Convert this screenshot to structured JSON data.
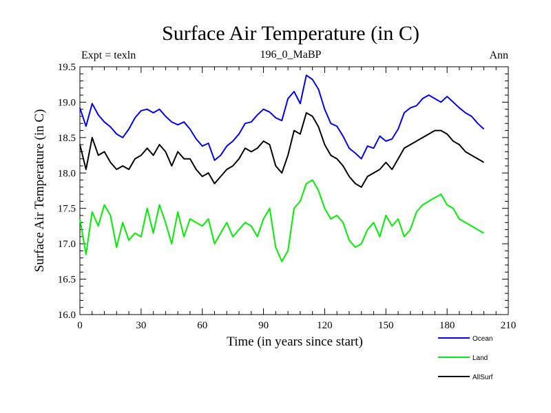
{
  "chart_data": {
    "type": "line",
    "title": "Surface Air Temperature (in C)",
    "subtitle": "196_0_MaBP",
    "header_left": "Expt = texln",
    "header_right": "Ann",
    "xlabel": "Time (in years since start)",
    "ylabel": "Surface Air Temperature (in C)",
    "xlim": [
      0,
      210
    ],
    "ylim": [
      16.0,
      19.5
    ],
    "xticks": [
      0,
      30,
      60,
      90,
      120,
      150,
      180,
      210
    ],
    "yticks": [
      16.0,
      16.5,
      17.0,
      17.5,
      18.0,
      18.5,
      19.0,
      19.5
    ],
    "ytick_labels": [
      "16.0",
      "16.5",
      "17.0",
      "17.5",
      "18.0",
      "18.5",
      "19.0",
      "19.5"
    ],
    "legend_position": "bottom-right",
    "series": [
      {
        "name": "Ocean",
        "color": "#0000ee",
        "x": [
          0,
          3,
          6,
          9,
          12,
          15,
          18,
          21,
          24,
          27,
          30,
          33,
          36,
          39,
          42,
          45,
          48,
          51,
          54,
          57,
          60,
          63,
          66,
          69,
          72,
          75,
          78,
          81,
          84,
          87,
          90,
          93,
          96,
          99,
          102,
          105,
          108,
          111,
          114,
          117,
          120,
          123,
          126,
          129,
          132,
          135,
          138,
          141,
          144,
          147,
          150,
          153,
          156,
          159,
          162,
          165,
          168,
          171,
          174,
          177,
          180,
          183,
          186,
          189,
          192,
          195,
          198
        ],
        "values": [
          18.92,
          18.66,
          18.98,
          18.82,
          18.72,
          18.65,
          18.55,
          18.5,
          18.62,
          18.78,
          18.88,
          18.9,
          18.85,
          18.9,
          18.8,
          18.72,
          18.68,
          18.72,
          18.62,
          18.48,
          18.38,
          18.42,
          18.18,
          18.25,
          18.38,
          18.45,
          18.55,
          18.7,
          18.72,
          18.82,
          18.9,
          18.86,
          18.78,
          18.74,
          19.05,
          19.15,
          18.98,
          19.38,
          19.32,
          19.18,
          18.9,
          18.7,
          18.66,
          18.52,
          18.35,
          18.28,
          18.2,
          18.38,
          18.35,
          18.52,
          18.45,
          18.48,
          18.62,
          18.85,
          18.92,
          18.95,
          19.05,
          19.1,
          19.05,
          19.0,
          19.08,
          19.0,
          18.92,
          18.85,
          18.8,
          18.7,
          18.62
        ]
      },
      {
        "name": "Land",
        "color": "#00ee00",
        "x": [
          0,
          3,
          6,
          9,
          12,
          15,
          18,
          21,
          24,
          27,
          30,
          33,
          36,
          39,
          42,
          45,
          48,
          51,
          54,
          57,
          60,
          63,
          66,
          69,
          72,
          75,
          78,
          81,
          84,
          87,
          90,
          93,
          96,
          99,
          102,
          105,
          108,
          111,
          114,
          117,
          120,
          123,
          126,
          129,
          132,
          135,
          138,
          141,
          144,
          147,
          150,
          153,
          156,
          159,
          162,
          165,
          168,
          171,
          174,
          177,
          180,
          183,
          186,
          189,
          192,
          195,
          198
        ],
        "values": [
          17.35,
          16.85,
          17.45,
          17.25,
          17.55,
          17.4,
          16.95,
          17.3,
          17.05,
          17.15,
          17.1,
          17.5,
          17.15,
          17.55,
          17.3,
          17.0,
          17.45,
          17.1,
          17.35,
          17.3,
          17.25,
          17.35,
          17.0,
          17.15,
          17.3,
          17.1,
          17.2,
          17.3,
          17.25,
          17.1,
          17.35,
          17.5,
          16.95,
          16.75,
          16.9,
          17.5,
          17.6,
          17.85,
          17.9,
          17.75,
          17.5,
          17.35,
          17.4,
          17.3,
          17.05,
          16.95,
          17.0,
          17.2,
          17.3,
          17.1,
          17.4,
          17.25,
          17.35,
          17.1,
          17.2,
          17.45,
          17.55,
          17.6,
          17.65,
          17.7,
          17.55,
          17.5,
          17.35,
          17.3,
          17.25,
          17.2,
          17.15
        ]
      },
      {
        "name": "AllSurf",
        "color": "#000000",
        "x": [
          0,
          3,
          6,
          9,
          12,
          15,
          18,
          21,
          24,
          27,
          30,
          33,
          36,
          39,
          42,
          45,
          48,
          51,
          54,
          57,
          60,
          63,
          66,
          69,
          72,
          75,
          78,
          81,
          84,
          87,
          90,
          93,
          96,
          99,
          102,
          105,
          108,
          111,
          114,
          117,
          120,
          123,
          126,
          129,
          132,
          135,
          138,
          141,
          144,
          147,
          150,
          153,
          156,
          159,
          162,
          165,
          168,
          171,
          174,
          177,
          180,
          183,
          186,
          189,
          192,
          195,
          198
        ],
        "values": [
          18.4,
          18.05,
          18.5,
          18.25,
          18.3,
          18.15,
          18.05,
          18.1,
          18.05,
          18.2,
          18.25,
          18.35,
          18.25,
          18.4,
          18.3,
          18.1,
          18.3,
          18.2,
          18.2,
          18.05,
          17.95,
          18.0,
          17.85,
          17.95,
          18.05,
          18.1,
          18.2,
          18.35,
          18.3,
          18.35,
          18.45,
          18.4,
          18.1,
          18.0,
          18.25,
          18.6,
          18.55,
          18.85,
          18.8,
          18.65,
          18.4,
          18.25,
          18.2,
          18.1,
          17.95,
          17.85,
          17.8,
          17.95,
          18.0,
          18.05,
          18.15,
          18.05,
          18.2,
          18.35,
          18.4,
          18.45,
          18.5,
          18.55,
          18.6,
          18.6,
          18.55,
          18.45,
          18.4,
          18.3,
          18.25,
          18.2,
          18.15
        ]
      }
    ]
  }
}
